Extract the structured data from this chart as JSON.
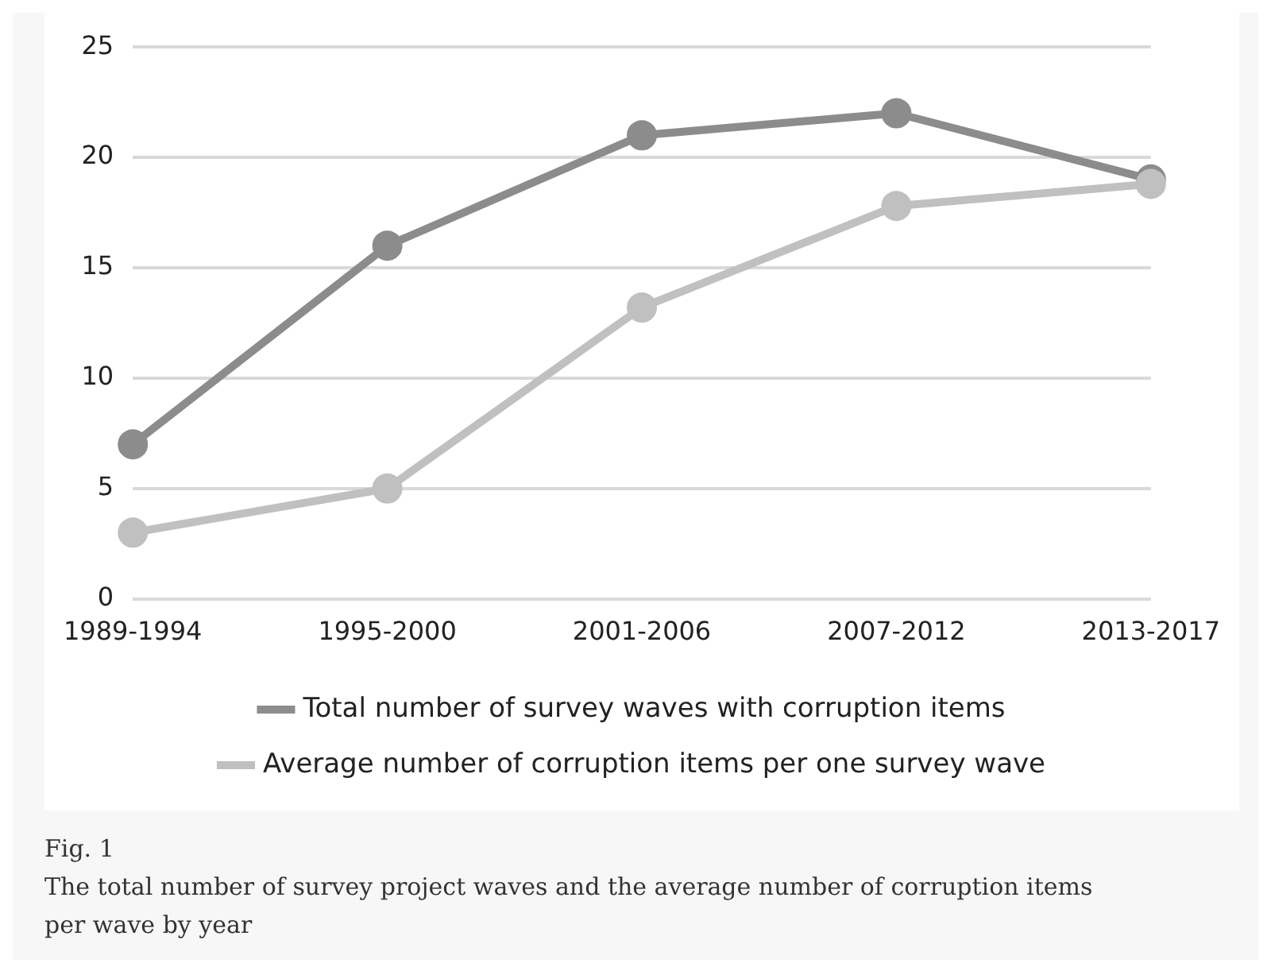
{
  "chart_data": {
    "type": "line",
    "categories": [
      "1989-1994",
      "1995-2000",
      "2001-2006",
      "2007-2012",
      "2013-2017"
    ],
    "series": [
      {
        "name": "Total number of survey waves with corruption items",
        "color": "#8c8c8c",
        "values": [
          7,
          16,
          21,
          22,
          19
        ]
      },
      {
        "name": "Average number of corruption items per one survey wave",
        "color": "#c0c0c0",
        "values": [
          3,
          5,
          13.2,
          17.8,
          18.8
        ]
      }
    ],
    "ylim": [
      0,
      25
    ],
    "yticks": [
      0,
      5,
      10,
      15,
      20,
      25
    ],
    "grid": "y",
    "legend": "bottom",
    "marker": "circle",
    "line_style": "solid",
    "annotations": [
      "Fig. 1",
      "The total number of survey project waves and the average number of corruption items per wave by year"
    ]
  }
}
